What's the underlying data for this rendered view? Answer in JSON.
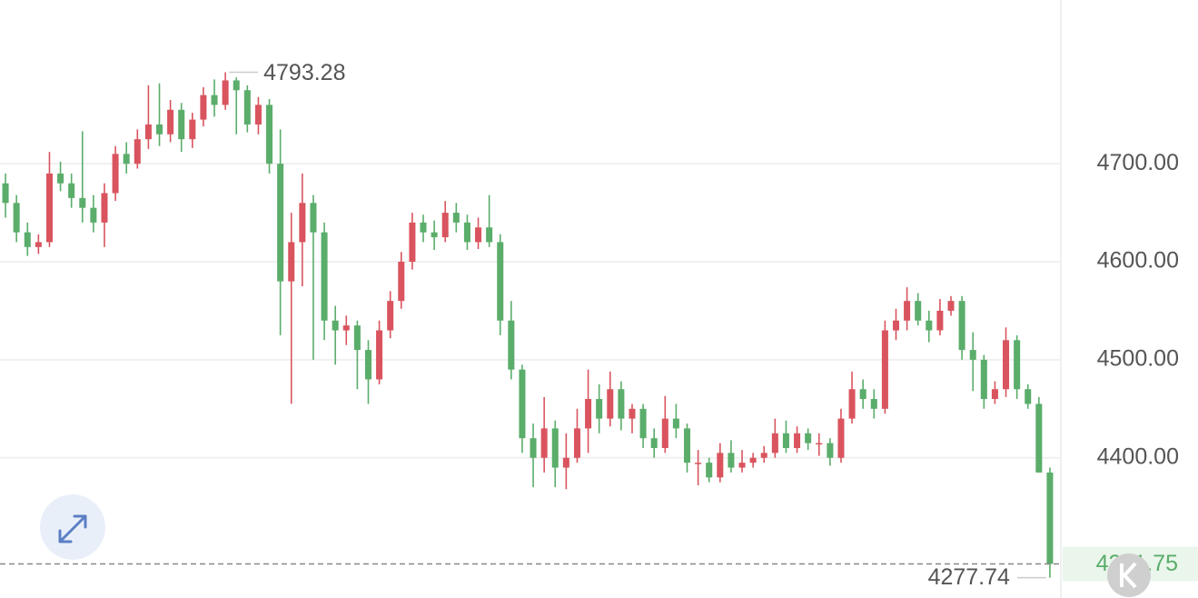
{
  "chart_data": {
    "type": "candlestick",
    "up_color": "#d9545e",
    "down_color": "#5aad6a",
    "ylim": [
      4257,
      4867
    ],
    "yticks": [
      {
        "value": 4400,
        "label": "4400.00"
      },
      {
        "value": 4500,
        "label": "4500.00"
      },
      {
        "value": 4600,
        "label": "4600.00"
      },
      {
        "value": 4700,
        "label": "4700.00"
      }
    ],
    "grid": true,
    "high_label": "4793.28",
    "low_label": "4277.74",
    "last_price": {
      "value": 4291.75,
      "label": "4291.75"
    },
    "ohlc": [
      [
        4680,
        4690,
        4645,
        4660
      ],
      [
        4660,
        4668,
        4620,
        4630
      ],
      [
        4630,
        4640,
        4606,
        4615
      ],
      [
        4615,
        4628,
        4608,
        4620
      ],
      [
        4620,
        4712,
        4615,
        4690
      ],
      [
        4690,
        4702,
        4672,
        4680
      ],
      [
        4680,
        4690,
        4655,
        4665
      ],
      [
        4665,
        4733,
        4640,
        4655
      ],
      [
        4655,
        4668,
        4630,
        4640
      ],
      [
        4640,
        4680,
        4615,
        4670
      ],
      [
        4670,
        4718,
        4662,
        4710
      ],
      [
        4710,
        4722,
        4690,
        4700
      ],
      [
        4700,
        4735,
        4695,
        4725
      ],
      [
        4725,
        4780,
        4715,
        4740
      ],
      [
        4740,
        4782,
        4718,
        4730
      ],
      [
        4730,
        4765,
        4722,
        4755
      ],
      [
        4755,
        4762,
        4712,
        4725
      ],
      [
        4725,
        4752,
        4716,
        4745
      ],
      [
        4745,
        4778,
        4738,
        4770
      ],
      [
        4770,
        4786,
        4748,
        4760
      ],
      [
        4760,
        4793.28,
        4755,
        4785
      ],
      [
        4785,
        4788,
        4730,
        4775
      ],
      [
        4775,
        4780,
        4732,
        4740
      ],
      [
        4740,
        4768,
        4730,
        4760
      ],
      [
        4760,
        4766,
        4690,
        4700
      ],
      [
        4700,
        4735,
        4525,
        4580
      ],
      [
        4580,
        4650,
        4455,
        4620
      ],
      [
        4620,
        4690,
        4575,
        4660
      ],
      [
        4660,
        4668,
        4500,
        4630
      ],
      [
        4630,
        4640,
        4520,
        4540
      ],
      [
        4540,
        4555,
        4495,
        4530
      ],
      [
        4530,
        4545,
        4515,
        4535
      ],
      [
        4535,
        4540,
        4470,
        4510
      ],
      [
        4510,
        4520,
        4455,
        4480
      ],
      [
        4480,
        4540,
        4475,
        4530
      ],
      [
        4530,
        4570,
        4522,
        4560
      ],
      [
        4560,
        4610,
        4552,
        4600
      ],
      [
        4600,
        4650,
        4592,
        4640
      ],
      [
        4640,
        4648,
        4620,
        4630
      ],
      [
        4630,
        4642,
        4612,
        4625
      ],
      [
        4625,
        4662,
        4620,
        4650
      ],
      [
        4650,
        4660,
        4630,
        4640
      ],
      [
        4640,
        4648,
        4612,
        4620
      ],
      [
        4620,
        4645,
        4613,
        4635
      ],
      [
        4635,
        4668,
        4615,
        4620
      ],
      [
        4620,
        4628,
        4525,
        4540
      ],
      [
        4540,
        4560,
        4480,
        4490
      ],
      [
        4490,
        4495,
        4405,
        4420
      ],
      [
        4420,
        4435,
        4370,
        4400
      ],
      [
        4400,
        4462,
        4385,
        4430
      ],
      [
        4430,
        4438,
        4370,
        4390
      ],
      [
        4390,
        4425,
        4368,
        4400
      ],
      [
        4400,
        4450,
        4395,
        4430
      ],
      [
        4430,
        4490,
        4405,
        4460
      ],
      [
        4460,
        4475,
        4425,
        4440
      ],
      [
        4440,
        4488,
        4432,
        4470
      ],
      [
        4470,
        4478,
        4428,
        4440
      ],
      [
        4440,
        4455,
        4425,
        4450
      ],
      [
        4450,
        4455,
        4410,
        4420
      ],
      [
        4420,
        4430,
        4400,
        4410
      ],
      [
        4410,
        4463,
        4405,
        4440
      ],
      [
        4440,
        4455,
        4420,
        4430
      ],
      [
        4430,
        4435,
        4385,
        4395
      ],
      [
        4395,
        4408,
        4372,
        4395
      ],
      [
        4395,
        4400,
        4375,
        4380
      ],
      [
        4380,
        4415,
        4375,
        4405
      ],
      [
        4405,
        4418,
        4385,
        4390
      ],
      [
        4390,
        4408,
        4385,
        4395
      ],
      [
        4395,
        4405,
        4390,
        4400
      ],
      [
        4400,
        4412,
        4395,
        4405
      ],
      [
        4405,
        4440,
        4400,
        4425
      ],
      [
        4425,
        4438,
        4405,
        4410
      ],
      [
        4410,
        4432,
        4405,
        4425
      ],
      [
        4425,
        4430,
        4408,
        4415
      ],
      [
        4415,
        4425,
        4402,
        4415
      ],
      [
        4415,
        4420,
        4392,
        4400
      ],
      [
        4400,
        4450,
        4395,
        4440
      ],
      [
        4440,
        4488,
        4435,
        4470
      ],
      [
        4470,
        4480,
        4450,
        4460
      ],
      [
        4460,
        4470,
        4440,
        4450
      ],
      [
        4450,
        4540,
        4445,
        4530
      ],
      [
        4530,
        4552,
        4520,
        4540
      ],
      [
        4540,
        4574,
        4530,
        4560
      ],
      [
        4560,
        4568,
        4535,
        4540
      ],
      [
        4540,
        4550,
        4518,
        4530
      ],
      [
        4530,
        4562,
        4525,
        4550
      ],
      [
        4550,
        4565,
        4545,
        4560
      ],
      [
        4560,
        4565,
        4500,
        4510
      ],
      [
        4510,
        4528,
        4468,
        4500
      ],
      [
        4500,
        4505,
        4450,
        4460
      ],
      [
        4460,
        4478,
        4455,
        4470
      ],
      [
        4470,
        4533,
        4462,
        4520
      ],
      [
        4520,
        4525,
        4460,
        4470
      ],
      [
        4470,
        4475,
        4450,
        4455
      ],
      [
        4455,
        4462,
        4385,
        4385
      ],
      [
        4385,
        4390,
        4277.74,
        4291.75
      ]
    ]
  }
}
